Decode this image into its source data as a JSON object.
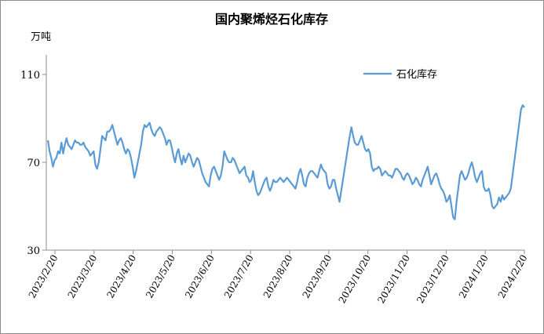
{
  "chart_data": {
    "type": "line",
    "title": "国内聚烯烃石化库存",
    "ylabel": "万吨",
    "xlabel": "",
    "ylim": [
      30,
      110
    ],
    "yticks": [
      30,
      70,
      110
    ],
    "grid": false,
    "legend_position": "top-right",
    "line_color": "#5b9bd5",
    "xticks": [
      "2023/2/20",
      "2023/3/20",
      "2023/4/20",
      "2023/5/20",
      "2023/6/20",
      "2023/7/20",
      "2023/8/20",
      "2023/9/20",
      "2023/10/20",
      "2023/11/20",
      "2023/12/20",
      "2024/1/20",
      "2024/2/20"
    ],
    "series": [
      {
        "name": "石化库存",
        "values": [
          80,
          75,
          72,
          68,
          71,
          72,
          75,
          74,
          79,
          74,
          78,
          81,
          78,
          77,
          76,
          78,
          80,
          79,
          79,
          78,
          78,
          79,
          77,
          76,
          75,
          73,
          74,
          75,
          69,
          67,
          70,
          76,
          82,
          81,
          80,
          84,
          84,
          85,
          87,
          84,
          81,
          78,
          80,
          81,
          79,
          76,
          74,
          76,
          75,
          72,
          68,
          63,
          66,
          70,
          74,
          78,
          84,
          87,
          86,
          87,
          88,
          85,
          83,
          82,
          84,
          85,
          86,
          85,
          83,
          81,
          78,
          80,
          80,
          77,
          73,
          70,
          74,
          76,
          72,
          69,
          73,
          70,
          72,
          74,
          73,
          70,
          68,
          70,
          72,
          71,
          68,
          65,
          63,
          61,
          60,
          59,
          64,
          67,
          68,
          66,
          64,
          62,
          64,
          68,
          75,
          73,
          71,
          70,
          70,
          72,
          71,
          69,
          67,
          65,
          66,
          67,
          68,
          64,
          63,
          61,
          62,
          66,
          61,
          57,
          55,
          56,
          58,
          60,
          62,
          63,
          59,
          57,
          59,
          62,
          61,
          61,
          62,
          63,
          62,
          61,
          62,
          63,
          62,
          61,
          60,
          59,
          58,
          61,
          65,
          67,
          64,
          60,
          59,
          63,
          65,
          66,
          66,
          65,
          64,
          63,
          66,
          69,
          67,
          66,
          65,
          60,
          58,
          59,
          62,
          62,
          58,
          55,
          52,
          57,
          62,
          67,
          72,
          77,
          82,
          86,
          82,
          79,
          78,
          78,
          80,
          82,
          79,
          76,
          75,
          76,
          74,
          68,
          66,
          67,
          67,
          68,
          67,
          64,
          65,
          66,
          65,
          64,
          64,
          63,
          65,
          67,
          67,
          66,
          65,
          63,
          62,
          64,
          65,
          64,
          62,
          60,
          61,
          63,
          62,
          60,
          59,
          62,
          64,
          66,
          68,
          64,
          60,
          62,
          64,
          65,
          63,
          60,
          58,
          57,
          55,
          52,
          53,
          55,
          50,
          45,
          44,
          52,
          58,
          64,
          66,
          64,
          62,
          63,
          65,
          68,
          70,
          67,
          63,
          61,
          63,
          65,
          66,
          59,
          57,
          57,
          58,
          55,
          50,
          49,
          50,
          51,
          54,
          52,
          55,
          53,
          54,
          55,
          56,
          58,
          64,
          70,
          76,
          82,
          88,
          94,
          96,
          95
        ]
      }
    ]
  }
}
